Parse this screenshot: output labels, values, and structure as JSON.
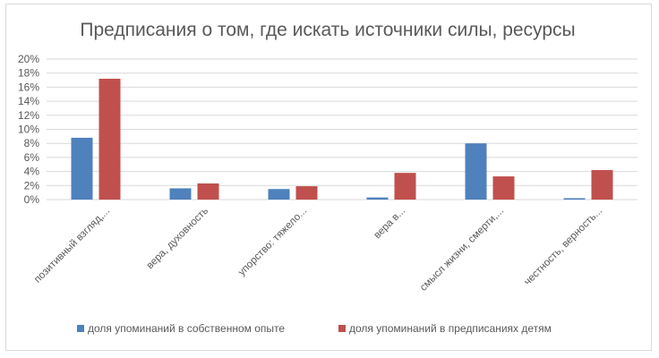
{
  "chart_data": {
    "type": "bar",
    "title": "Предписания о том, где искать источники силы, ресурсы",
    "categories": [
      "позитивный взгляд,...",
      "вера, духовность",
      "упорство: тяжело...",
      "вера в...",
      "смысл жизни, смерти,...",
      "честность, верность..."
    ],
    "series": [
      {
        "name": "доля упоминаний в собственном опыте",
        "values": [
          8.8,
          1.6,
          1.5,
          0.3,
          8.0,
          0.2
        ]
      },
      {
        "name": "доля упоминаний в предписаниях детям",
        "values": [
          17.2,
          2.3,
          1.9,
          3.8,
          3.3,
          4.2
        ]
      }
    ],
    "ylim": [
      0,
      20
    ],
    "yticks": [
      "0%",
      "2%",
      "4%",
      "6%",
      "8%",
      "10%",
      "12%",
      "14%",
      "16%",
      "18%",
      "20%"
    ],
    "grid": true,
    "legend_position": "bottom",
    "colors": [
      "#4f81bd",
      "#c0504d"
    ]
  }
}
